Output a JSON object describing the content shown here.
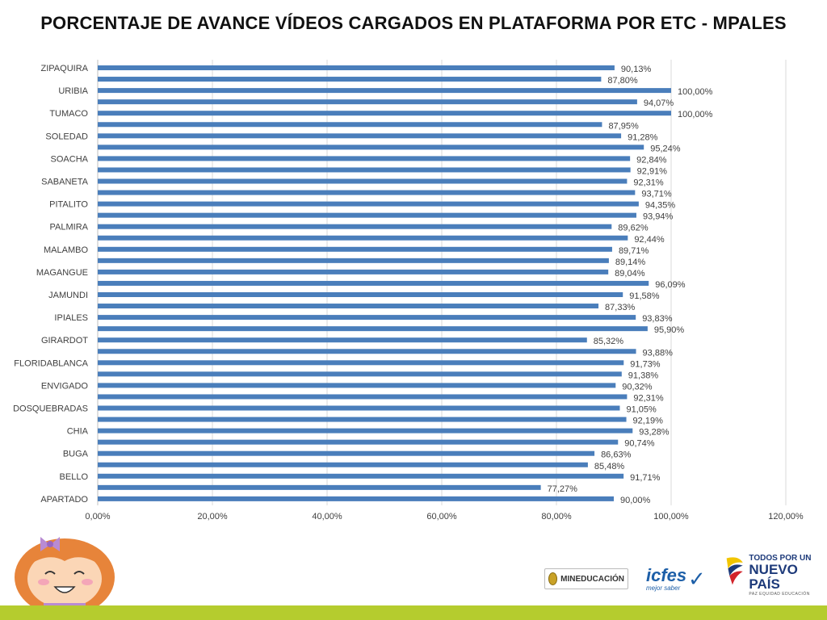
{
  "title": "PORCENTAJE DE AVANCE VÍDEOS CARGADOS EN PLATAFORMA POR ETC - MPALES",
  "chart_data": {
    "type": "bar",
    "orientation": "horizontal",
    "categories": [
      "ZIPAQUIRA",
      "",
      "URIBIA",
      "",
      "TUMACO",
      "",
      "SOLEDAD",
      "",
      "SOACHA",
      "",
      "SABANETA",
      "",
      "PITALITO",
      "",
      "PALMIRA",
      "",
      "MALAMBO",
      "",
      "MAGANGUE",
      "",
      "JAMUNDI",
      "",
      "IPIALES",
      "",
      "GIRARDOT",
      "",
      "FLORIDABLANCA",
      "",
      "ENVIGADO",
      "",
      "DOSQUEBRADAS",
      "",
      "CHIA",
      "",
      "BUGA",
      "",
      "BELLO",
      "",
      "APARTADO"
    ],
    "values": [
      90.13,
      87.8,
      100.0,
      94.07,
      100.0,
      87.95,
      91.28,
      95.24,
      92.84,
      92.91,
      92.31,
      93.71,
      94.35,
      93.94,
      89.62,
      92.44,
      89.71,
      89.14,
      89.04,
      96.09,
      91.58,
      87.33,
      93.83,
      95.9,
      85.32,
      93.88,
      91.73,
      91.38,
      90.32,
      92.31,
      91.05,
      92.19,
      93.28,
      90.74,
      86.63,
      85.48,
      91.71,
      77.27,
      90.0
    ],
    "value_labels": [
      "90,13%",
      "87,80%",
      "100,00%",
      "94,07%",
      "100,00%",
      "87,95%",
      "91,28%",
      "95,24%",
      "92,84%",
      "92,91%",
      "92,31%",
      "93,71%",
      "94,35%",
      "93,94%",
      "89,62%",
      "92,44%",
      "89,71%",
      "89,14%",
      "89,04%",
      "96,09%",
      "91,58%",
      "87,33%",
      "93,83%",
      "95,90%",
      "85,32%",
      "93,88%",
      "91,73%",
      "91,38%",
      "90,32%",
      "92,31%",
      "91,05%",
      "92,19%",
      "93,28%",
      "90,74%",
      "86,63%",
      "85,48%",
      "91,71%",
      "77,27%",
      "90,00%"
    ],
    "xlim": [
      0,
      120
    ],
    "xticks": [
      0,
      20,
      40,
      60,
      80,
      100,
      120
    ],
    "xtick_labels": [
      "0,00%",
      "20,00%",
      "40,00%",
      "60,00%",
      "80,00%",
      "100,00%",
      "120,00%"
    ],
    "bar_color": "#4a7ebb",
    "grid": true
  },
  "footer": {
    "mineducacion": "MINEDUCACIÓN",
    "icfes_name": "icfes",
    "icfes_tag": "mejor saber",
    "gob_line1": "TODOS POR UN",
    "gob_line2": "NUEVO PAÍS",
    "gob_line3": "PAZ  EQUIDAD  EDUCACIÓN",
    "accent_color": "#b5cc2e"
  }
}
